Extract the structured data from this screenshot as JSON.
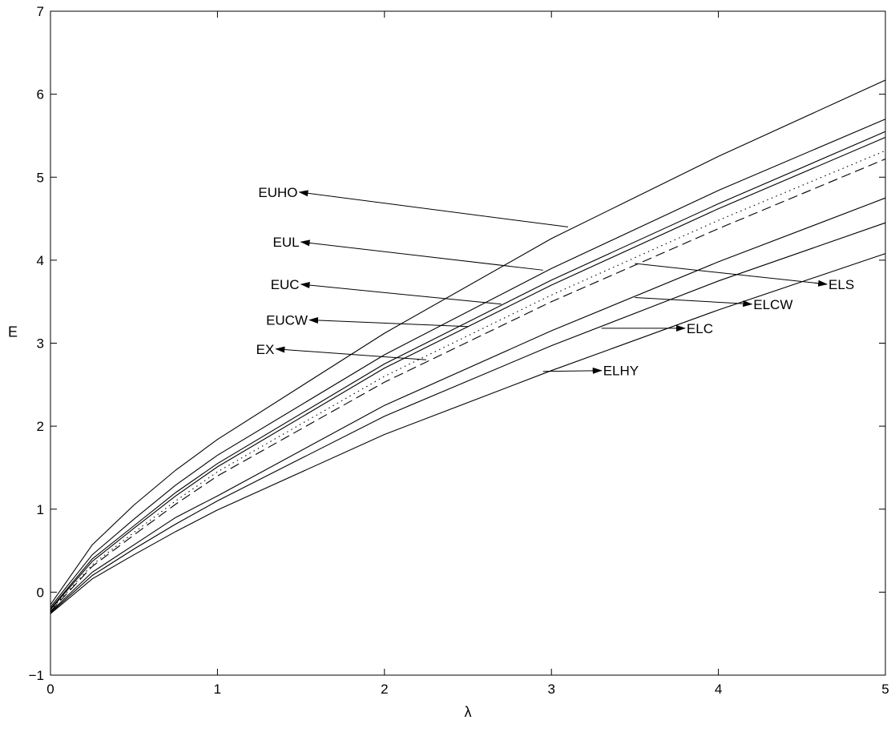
{
  "chart_data": {
    "type": "line",
    "title": "",
    "xlabel": "λ",
    "ylabel": "E",
    "xlim": [
      0,
      5
    ],
    "ylim": [
      -1,
      7
    ],
    "xticks": [
      0,
      1,
      2,
      3,
      4,
      5
    ],
    "yticks": [
      -1,
      0,
      1,
      2,
      3,
      4,
      5,
      6,
      7
    ],
    "grid": false,
    "legend": "none",
    "x": [
      0,
      0.25,
      0.5,
      0.75,
      1,
      2,
      3,
      4,
      5
    ],
    "series": [
      {
        "name": "EUHO",
        "style": "solid",
        "values": [
          -0.15,
          0.57,
          1.05,
          1.47,
          1.84,
          3.12,
          4.26,
          5.25,
          6.17
        ]
      },
      {
        "name": "EUL",
        "style": "solid",
        "values": [
          -0.18,
          0.45,
          0.88,
          1.29,
          1.65,
          2.86,
          3.9,
          4.84,
          5.7
        ]
      },
      {
        "name": "EUC",
        "style": "solid",
        "values": [
          -0.2,
          0.4,
          0.8,
          1.2,
          1.55,
          2.75,
          3.76,
          4.68,
          5.55
        ]
      },
      {
        "name": "EUCW",
        "style": "solid",
        "values": [
          -0.21,
          0.37,
          0.77,
          1.16,
          1.51,
          2.7,
          3.7,
          4.62,
          5.48
        ]
      },
      {
        "name": "ELS",
        "style": "dotted",
        "values": [
          -0.22,
          0.33,
          0.72,
          1.1,
          1.45,
          2.6,
          3.58,
          4.48,
          5.32
        ]
      },
      {
        "name": "EX",
        "style": "dashed",
        "values": [
          -0.23,
          0.31,
          0.69,
          1.06,
          1.4,
          2.53,
          3.5,
          4.38,
          5.22
        ]
      },
      {
        "name": "ELCW",
        "style": "solid",
        "values": [
          -0.24,
          0.24,
          0.57,
          0.9,
          1.16,
          2.25,
          3.15,
          3.98,
          4.75
        ]
      },
      {
        "name": "ELC",
        "style": "solid",
        "values": [
          -0.25,
          0.2,
          0.52,
          0.82,
          1.1,
          2.12,
          2.97,
          3.75,
          4.45
        ]
      },
      {
        "name": "ELHY",
        "style": "solid",
        "values": [
          -0.26,
          0.16,
          0.45,
          0.73,
          0.99,
          1.9,
          2.67,
          3.4,
          4.08
        ]
      }
    ],
    "annotations": [
      {
        "text": "EUHO",
        "side": "left",
        "target": [
          3.1,
          4.4
        ],
        "arrow_to": [
          1.49,
          4.82
        ]
      },
      {
        "text": "EUL",
        "side": "left",
        "target": [
          2.95,
          3.88
        ],
        "arrow_to": [
          1.5,
          4.22
        ]
      },
      {
        "text": "EUC",
        "side": "left",
        "target": [
          2.7,
          3.47
        ],
        "arrow_to": [
          1.5,
          3.71
        ]
      },
      {
        "text": "EUCW",
        "side": "left",
        "target": [
          2.5,
          3.2
        ],
        "arrow_to": [
          1.55,
          3.28
        ]
      },
      {
        "text": "EX",
        "side": "left",
        "target": [
          2.25,
          2.8
        ],
        "arrow_to": [
          1.35,
          2.93
        ]
      },
      {
        "text": "ELS",
        "side": "right",
        "target": [
          3.5,
          3.96
        ],
        "arrow_to": [
          4.65,
          3.71
        ]
      },
      {
        "text": "ELCW",
        "side": "right",
        "target": [
          3.5,
          3.55
        ],
        "arrow_to": [
          4.2,
          3.47
        ]
      },
      {
        "text": "ELC",
        "side": "right",
        "target": [
          3.3,
          3.18
        ],
        "arrow_to": [
          3.8,
          3.18
        ]
      },
      {
        "text": "ELHY",
        "side": "right",
        "target": [
          2.95,
          2.66
        ],
        "arrow_to": [
          3.3,
          2.67
        ]
      }
    ]
  }
}
